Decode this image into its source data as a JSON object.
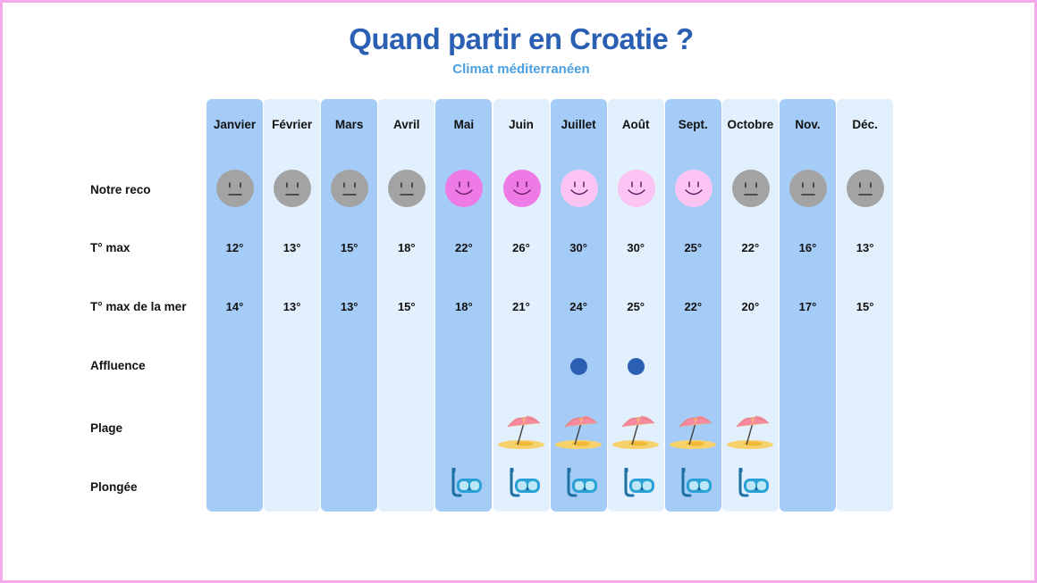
{
  "header": {
    "title": "Quand partir en Croatie ?",
    "subtitle": "Climat méditerranéen"
  },
  "rows": {
    "reco": "Notre reco",
    "tmax": "T° max",
    "tsea": "T° max de la mer",
    "crowd": "Affluence",
    "beach": "Plage",
    "dive": "Plongée"
  },
  "months": [
    {
      "name": "Janvier",
      "reco": "neutral",
      "tmax": "12°",
      "tsea": "14°",
      "crowd": false,
      "beach": false,
      "dive": false
    },
    {
      "name": "Février",
      "reco": "neutral",
      "tmax": "13°",
      "tsea": "13°",
      "crowd": false,
      "beach": false,
      "dive": false
    },
    {
      "name": "Mars",
      "reco": "neutral",
      "tmax": "15°",
      "tsea": "13°",
      "crowd": false,
      "beach": false,
      "dive": false
    },
    {
      "name": "Avril",
      "reco": "neutral",
      "tmax": "18°",
      "tsea": "15°",
      "crowd": false,
      "beach": false,
      "dive": false
    },
    {
      "name": "Mai",
      "reco": "best",
      "tmax": "22°",
      "tsea": "18°",
      "crowd": false,
      "beach": false,
      "dive": true
    },
    {
      "name": "Juin",
      "reco": "best",
      "tmax": "26°",
      "tsea": "21°",
      "crowd": false,
      "beach": true,
      "dive": true
    },
    {
      "name": "Juillet",
      "reco": "good",
      "tmax": "30°",
      "tsea": "24°",
      "crowd": true,
      "beach": true,
      "dive": true
    },
    {
      "name": "Août",
      "reco": "good",
      "tmax": "30°",
      "tsea": "25°",
      "crowd": true,
      "beach": true,
      "dive": true
    },
    {
      "name": "Sept.",
      "reco": "good",
      "tmax": "25°",
      "tsea": "22°",
      "crowd": false,
      "beach": true,
      "dive": true
    },
    {
      "name": "Octobre",
      "reco": "neutral",
      "tmax": "22°",
      "tsea": "20°",
      "crowd": false,
      "beach": true,
      "dive": true
    },
    {
      "name": "Nov.",
      "reco": "neutral",
      "tmax": "16°",
      "tsea": "17°",
      "crowd": false,
      "beach": false,
      "dive": false
    },
    {
      "name": "Déc.",
      "reco": "neutral",
      "tmax": "13°",
      "tsea": "15°",
      "crowd": false,
      "beach": false,
      "dive": false
    }
  ],
  "icons": {
    "neutral": "neutral-face-icon",
    "best": "happy-face-icon",
    "good": "happy-face-icon",
    "crowd": "crowd-dot-icon",
    "beach": "beach-umbrella-icon",
    "dive": "diving-mask-icon"
  },
  "colors": {
    "title": "#2a5fb4",
    "subtitle": "#4a9fe0",
    "column_dark": "#a4ccf6",
    "column_light": "#e2effc",
    "frame": "#f4a9ec",
    "neutral_face": "#a3a3a3",
    "best_face": "#ee7ae6",
    "good_face": "#fbc4f3",
    "crowd_dot": "#2a5fb4"
  }
}
